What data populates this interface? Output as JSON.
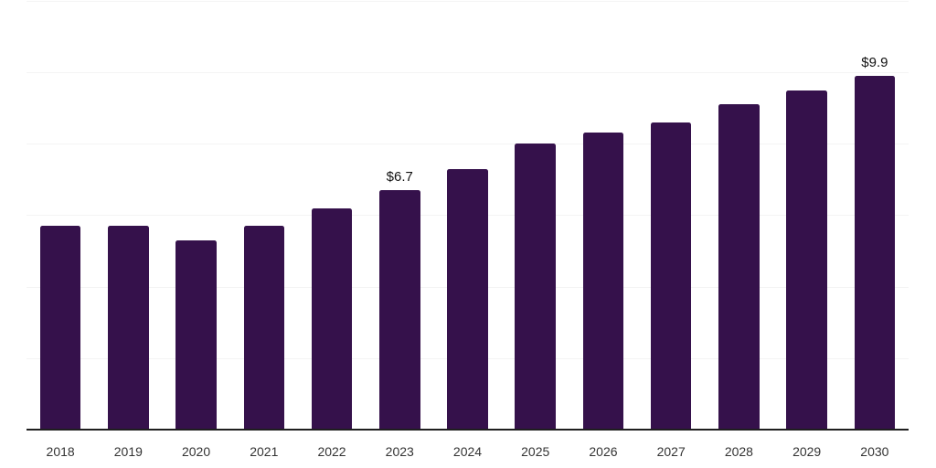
{
  "chart_data": {
    "type": "bar",
    "title": "",
    "xlabel": "",
    "ylabel": "",
    "categories": [
      "2018",
      "2019",
      "2020",
      "2021",
      "2022",
      "2023",
      "2024",
      "2025",
      "2026",
      "2027",
      "2028",
      "2029",
      "2030"
    ],
    "values": [
      5.7,
      5.7,
      5.3,
      5.7,
      6.2,
      6.7,
      7.3,
      8.0,
      8.3,
      8.6,
      9.1,
      9.5,
      9.9
    ],
    "value_labels": [
      "",
      "",
      "",
      "",
      "",
      "$6.7",
      "",
      "",
      "",
      "",
      "",
      "",
      "$9.9"
    ],
    "ylim": [
      0,
      12
    ],
    "grid_step": 2,
    "gridlines": "horizontal",
    "y_axis_tick_labels": "none",
    "legend_position": "none",
    "bar_color": "#35114B",
    "gridline_color": "#f4f4f4",
    "axis_line_color": "#1f1f1f",
    "tick_label_color": "#333333",
    "value_label_color": "#111111"
  }
}
